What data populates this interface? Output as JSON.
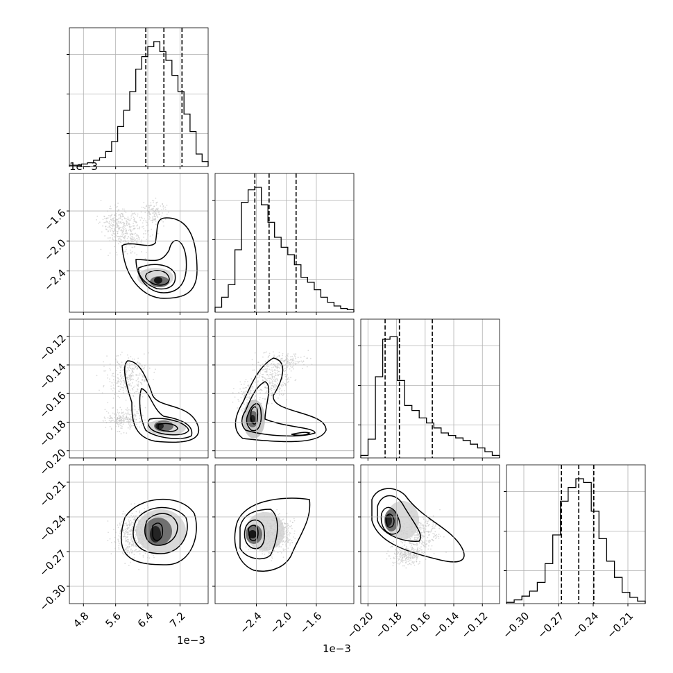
{
  "chart_data": {
    "type": "corner",
    "grid": true,
    "offset_label": "1e−3",
    "quantile_lines": "dashed",
    "parameters": [
      {
        "xlim": [
          4.45,
          7.9
        ],
        "xticks": [
          "4.8",
          "5.6",
          "6.4",
          "7.2"
        ],
        "quantiles": [
          6.35,
          6.8,
          7.25
        ],
        "hist": [
          0.01,
          0.01,
          0.02,
          0.03,
          0.05,
          0.07,
          0.12,
          0.2,
          0.32,
          0.45,
          0.6,
          0.78,
          0.88,
          0.96,
          1.0,
          0.92,
          0.85,
          0.73,
          0.6,
          0.42,
          0.28,
          0.1,
          0.04
        ]
      },
      {
        "xlim": [
          -2.95,
          -1.1
        ],
        "xticks": [
          "−2.4",
          "−2.0",
          "−1.6"
        ],
        "yticks": [
          "−1.6",
          "−2.0",
          "−2.4"
        ],
        "quantiles": [
          -2.42,
          -2.23,
          -1.87
        ],
        "hist": [
          0.04,
          0.12,
          0.22,
          0.5,
          0.88,
          0.98,
          1.0,
          0.86,
          0.72,
          0.6,
          0.52,
          0.46,
          0.38,
          0.28,
          0.24,
          0.18,
          0.12,
          0.08,
          0.05,
          0.03,
          0.02
        ]
      },
      {
        "xlim": [
          -0.205,
          -0.108
        ],
        "xticks": [
          "−0.20",
          "−0.18",
          "−0.16",
          "−0.14",
          "−0.12"
        ],
        "yticks": [
          "−0.12",
          "−0.14",
          "−0.16",
          "−0.18",
          "−0.20"
        ],
        "quantiles": [
          -0.188,
          -0.178,
          -0.155
        ],
        "hist": [
          0.02,
          0.15,
          0.65,
          0.95,
          0.97,
          0.62,
          0.42,
          0.38,
          0.32,
          0.28,
          0.24,
          0.2,
          0.18,
          0.16,
          0.14,
          0.11,
          0.08,
          0.05,
          0.02
        ]
      },
      {
        "xlim": [
          -0.315,
          -0.195
        ],
        "xticks": [
          "−0.30",
          "−0.27",
          "−0.24",
          "−0.21"
        ],
        "yticks": [
          "−0.21",
          "−0.24",
          "−0.27",
          "−0.30"
        ],
        "quantiles": [
          -0.2675,
          -0.2525,
          -0.2395
        ],
        "hist": [
          0.01,
          0.03,
          0.06,
          0.1,
          0.17,
          0.32,
          0.55,
          0.82,
          0.93,
          1.0,
          0.97,
          0.74,
          0.52,
          0.34,
          0.21,
          0.09,
          0.05,
          0.02
        ]
      }
    ]
  }
}
